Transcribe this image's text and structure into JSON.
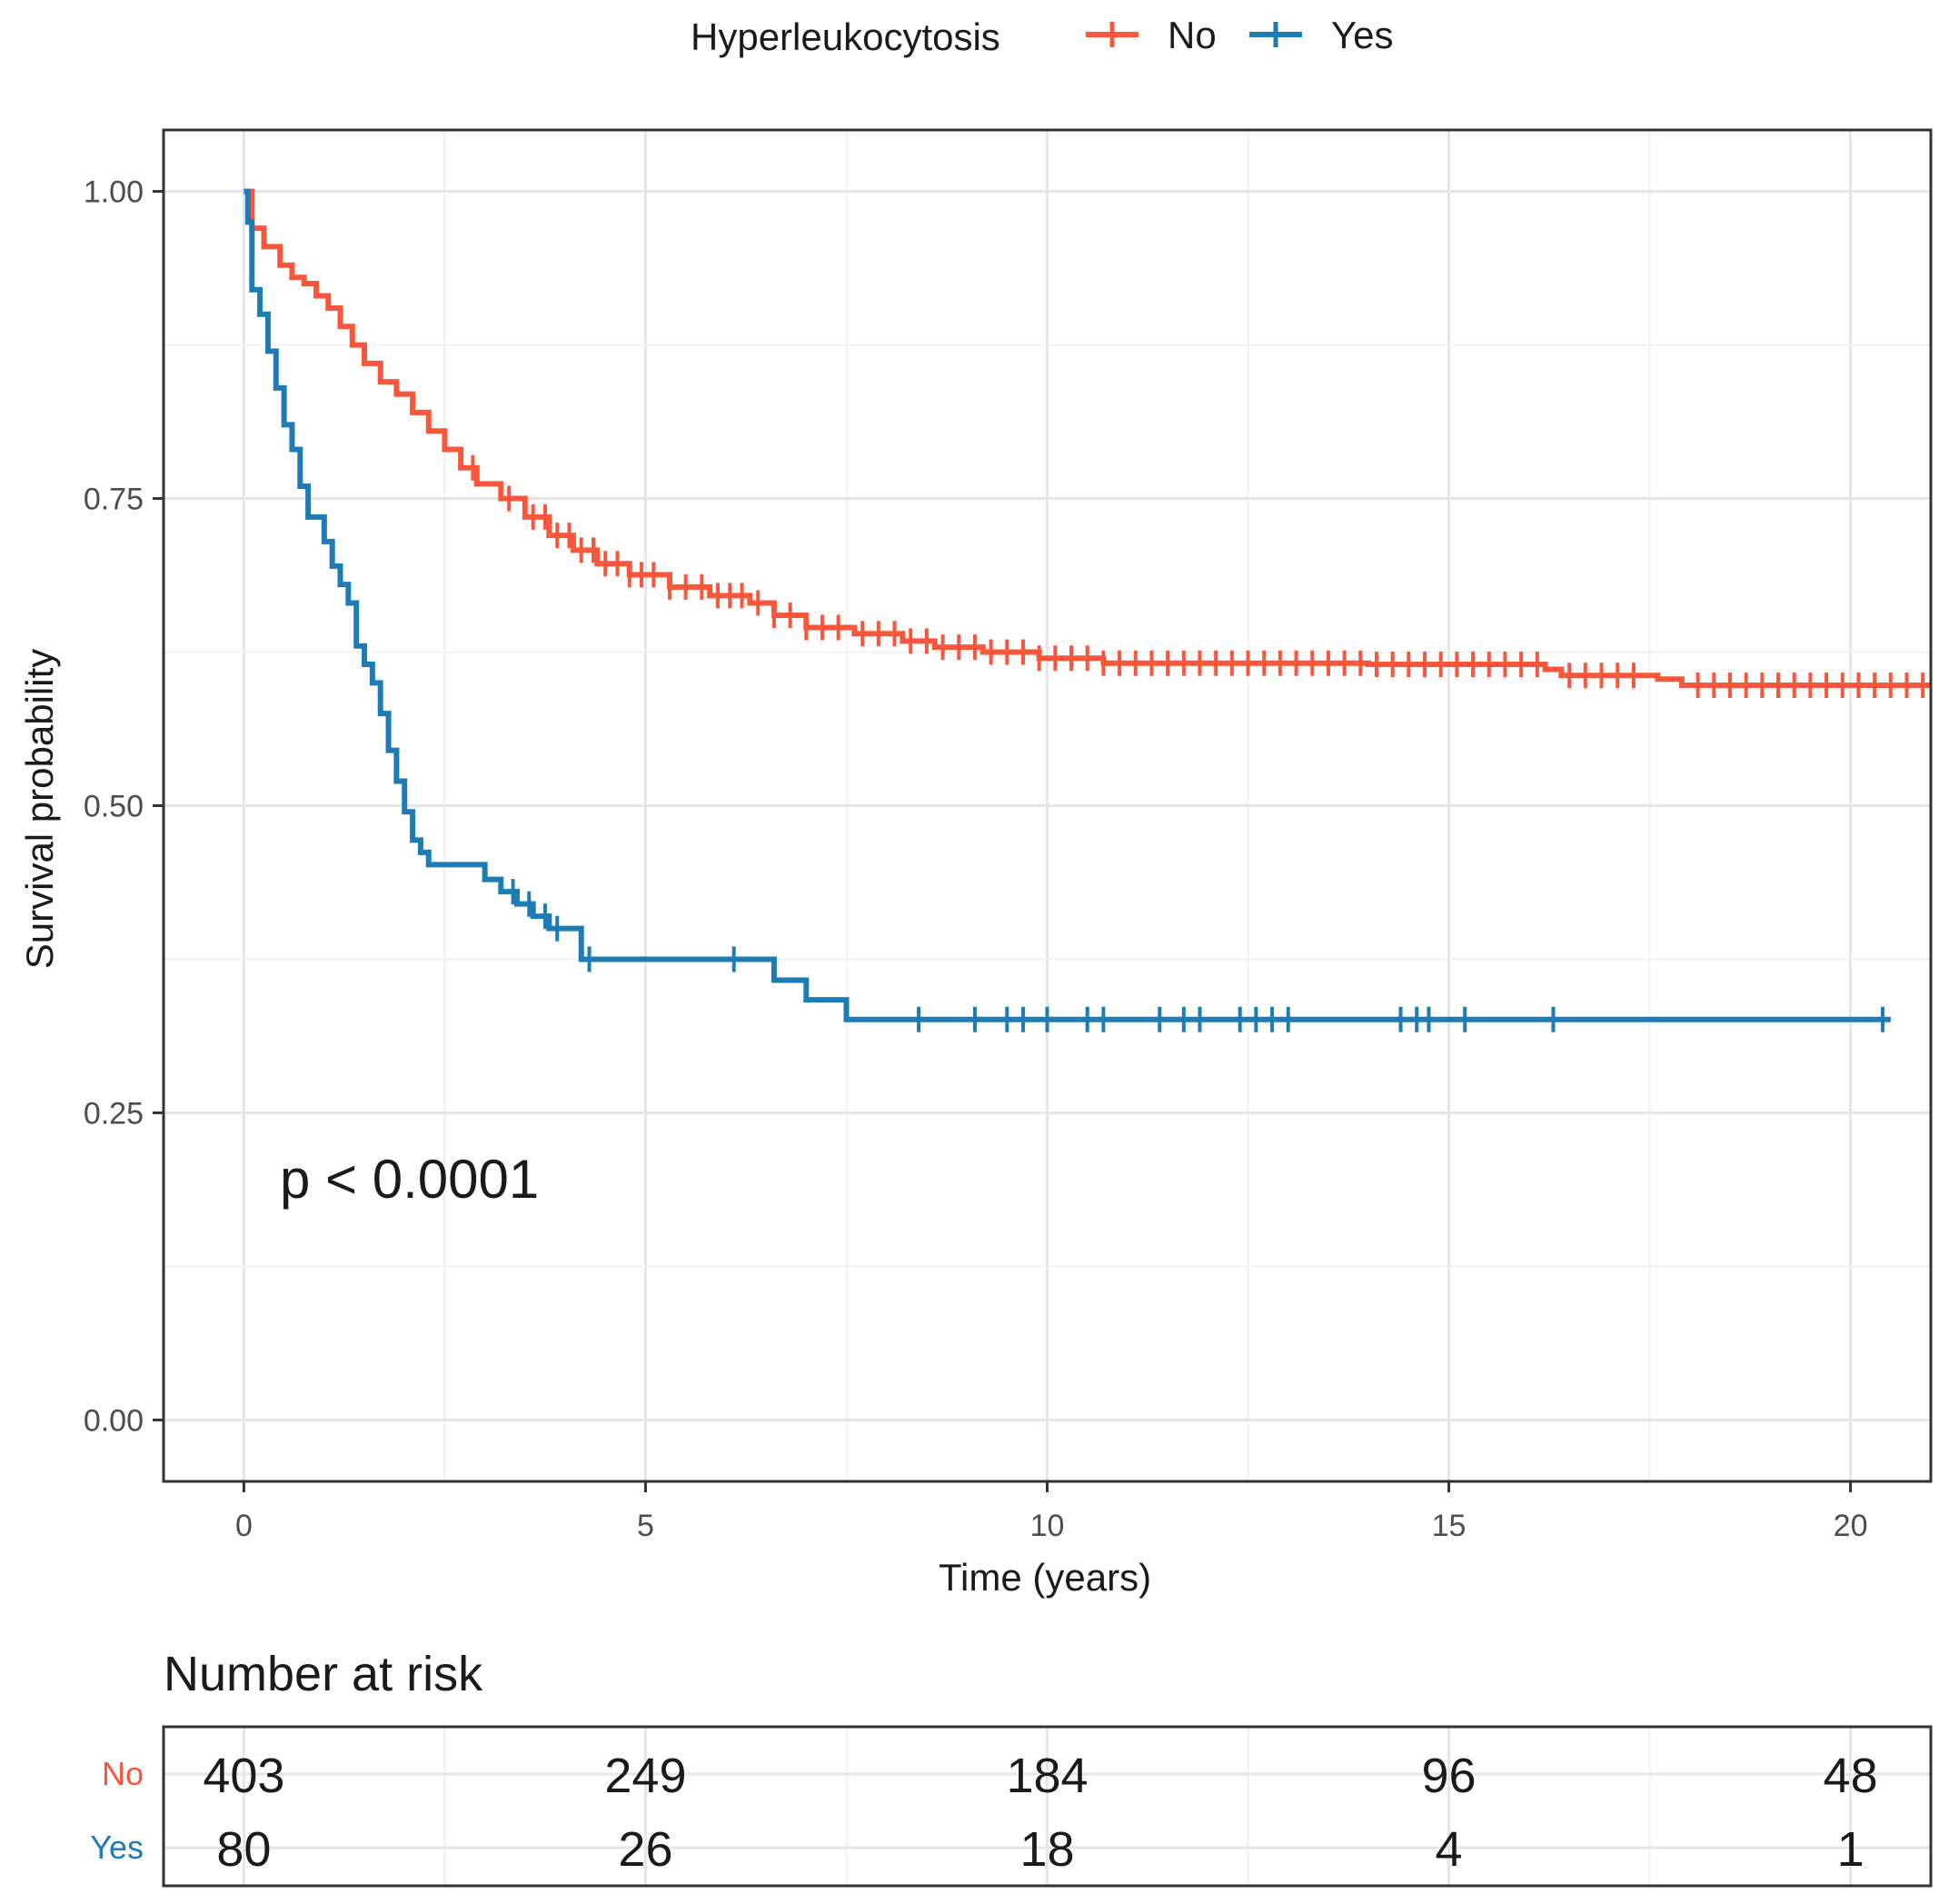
{
  "chart_data": {
    "type": "line",
    "subtype": "kaplan-meier",
    "legend": {
      "title": "Hyperleukocytosis",
      "placement": "top"
    },
    "xlabel": "Time (years)",
    "ylabel": "Survival probability",
    "xlim": [
      -1,
      21
    ],
    "ylim": [
      -0.05,
      1.05
    ],
    "x_ticks": [
      0,
      5,
      10,
      15,
      20
    ],
    "y_ticks": [
      0.0,
      0.25,
      0.5,
      0.75,
      1.0
    ],
    "x_tick_labels": [
      "0",
      "5",
      "10",
      "15",
      "20"
    ],
    "y_tick_labels": [
      "0.00",
      "0.25",
      "0.50",
      "0.75",
      "1.00"
    ],
    "grid": true,
    "annotation": "p < 0.0001",
    "series": [
      {
        "name": "No",
        "color": "#f8573c",
        "steps": [
          [
            0,
            1.0
          ],
          [
            0.1,
            0.97
          ],
          [
            0.25,
            0.955
          ],
          [
            0.45,
            0.94
          ],
          [
            0.6,
            0.93
          ],
          [
            0.75,
            0.925
          ],
          [
            0.9,
            0.915
          ],
          [
            1.05,
            0.905
          ],
          [
            1.2,
            0.89
          ],
          [
            1.35,
            0.875
          ],
          [
            1.5,
            0.86
          ],
          [
            1.7,
            0.845
          ],
          [
            1.9,
            0.835
          ],
          [
            2.1,
            0.82
          ],
          [
            2.3,
            0.805
          ],
          [
            2.5,
            0.79
          ],
          [
            2.7,
            0.775
          ],
          [
            2.9,
            0.762
          ],
          [
            3.2,
            0.75
          ],
          [
            3.5,
            0.735
          ],
          [
            3.8,
            0.72
          ],
          [
            4.1,
            0.708
          ],
          [
            4.4,
            0.697
          ],
          [
            4.8,
            0.688
          ],
          [
            5.3,
            0.678
          ],
          [
            5.8,
            0.671
          ],
          [
            6.3,
            0.665
          ],
          [
            6.6,
            0.655
          ],
          [
            7.0,
            0.645
          ],
          [
            7.6,
            0.64
          ],
          [
            8.2,
            0.634
          ],
          [
            8.6,
            0.629
          ],
          [
            9.2,
            0.625
          ],
          [
            9.9,
            0.62
          ],
          [
            10.7,
            0.616
          ],
          [
            14.0,
            0.615
          ],
          [
            16.2,
            0.611
          ],
          [
            16.4,
            0.606
          ],
          [
            17.6,
            0.603
          ],
          [
            17.9,
            0.598
          ],
          [
            21.0,
            0.598
          ]
        ],
        "censor_x": [
          2.85,
          3.3,
          3.6,
          3.75,
          3.9,
          4.05,
          4.2,
          4.35,
          4.5,
          4.65,
          4.8,
          4.95,
          5.1,
          5.3,
          5.5,
          5.7,
          5.9,
          6.05,
          6.2,
          6.4,
          6.6,
          6.8,
          7.0,
          7.2,
          7.4,
          7.7,
          7.9,
          8.1,
          8.3,
          8.5,
          8.7,
          8.9,
          9.1,
          9.3,
          9.5,
          9.7,
          9.9,
          10.1,
          10.3,
          10.5,
          10.7,
          10.9,
          11.1,
          11.3,
          11.5,
          11.7,
          11.9,
          12.1,
          12.3,
          12.5,
          12.7,
          12.9,
          13.1,
          13.3,
          13.5,
          13.7,
          13.9,
          14.1,
          14.3,
          14.5,
          14.7,
          14.9,
          15.1,
          15.3,
          15.5,
          15.7,
          15.9,
          16.1,
          16.5,
          16.7,
          16.9,
          17.1,
          17.3,
          18.1,
          18.3,
          18.5,
          18.7,
          18.9,
          19.1,
          19.3,
          19.5,
          19.7,
          19.9,
          20.1,
          20.3,
          20.5,
          20.7,
          20.9
        ]
      },
      {
        "name": "Yes",
        "color": "#1d7bb5",
        "steps": [
          [
            0,
            1.0
          ],
          [
            0.05,
            0.975
          ],
          [
            0.1,
            0.92
          ],
          [
            0.2,
            0.9
          ],
          [
            0.3,
            0.87
          ],
          [
            0.4,
            0.84
          ],
          [
            0.5,
            0.81
          ],
          [
            0.6,
            0.79
          ],
          [
            0.7,
            0.76
          ],
          [
            0.8,
            0.735
          ],
          [
            1.0,
            0.715
          ],
          [
            1.1,
            0.695
          ],
          [
            1.2,
            0.68
          ],
          [
            1.3,
            0.665
          ],
          [
            1.4,
            0.63
          ],
          [
            1.5,
            0.615
          ],
          [
            1.6,
            0.6
          ],
          [
            1.7,
            0.575
          ],
          [
            1.8,
            0.545
          ],
          [
            1.9,
            0.52
          ],
          [
            2.0,
            0.495
          ],
          [
            2.1,
            0.472
          ],
          [
            2.2,
            0.462
          ],
          [
            2.3,
            0.452
          ],
          [
            3.0,
            0.44
          ],
          [
            3.2,
            0.43
          ],
          [
            3.4,
            0.42
          ],
          [
            3.6,
            0.41
          ],
          [
            3.8,
            0.4
          ],
          [
            4.2,
            0.375
          ],
          [
            6.6,
            0.358
          ],
          [
            7.0,
            0.342
          ],
          [
            7.5,
            0.326
          ],
          [
            20.5,
            0.326
          ]
        ],
        "censor_x": [
          3.35,
          3.55,
          3.75,
          3.9,
          4.3,
          6.1,
          8.4,
          9.1,
          9.5,
          9.7,
          10.0,
          10.5,
          10.7,
          11.4,
          11.7,
          11.9,
          12.4,
          12.6,
          12.8,
          13.0,
          14.4,
          14.6,
          14.75,
          15.2,
          16.3,
          20.4
        ]
      }
    ],
    "risk_table": {
      "title": "Number at risk",
      "times": [
        0,
        5,
        10,
        15,
        20
      ],
      "rows": [
        {
          "label": "No",
          "color": "#f8573c",
          "counts": [
            "403",
            "249",
            "184",
            "96",
            "48"
          ]
        },
        {
          "label": "Yes",
          "color": "#1d7bb5",
          "counts": [
            "80",
            "26",
            "18",
            "4",
            "1"
          ]
        }
      ]
    }
  }
}
